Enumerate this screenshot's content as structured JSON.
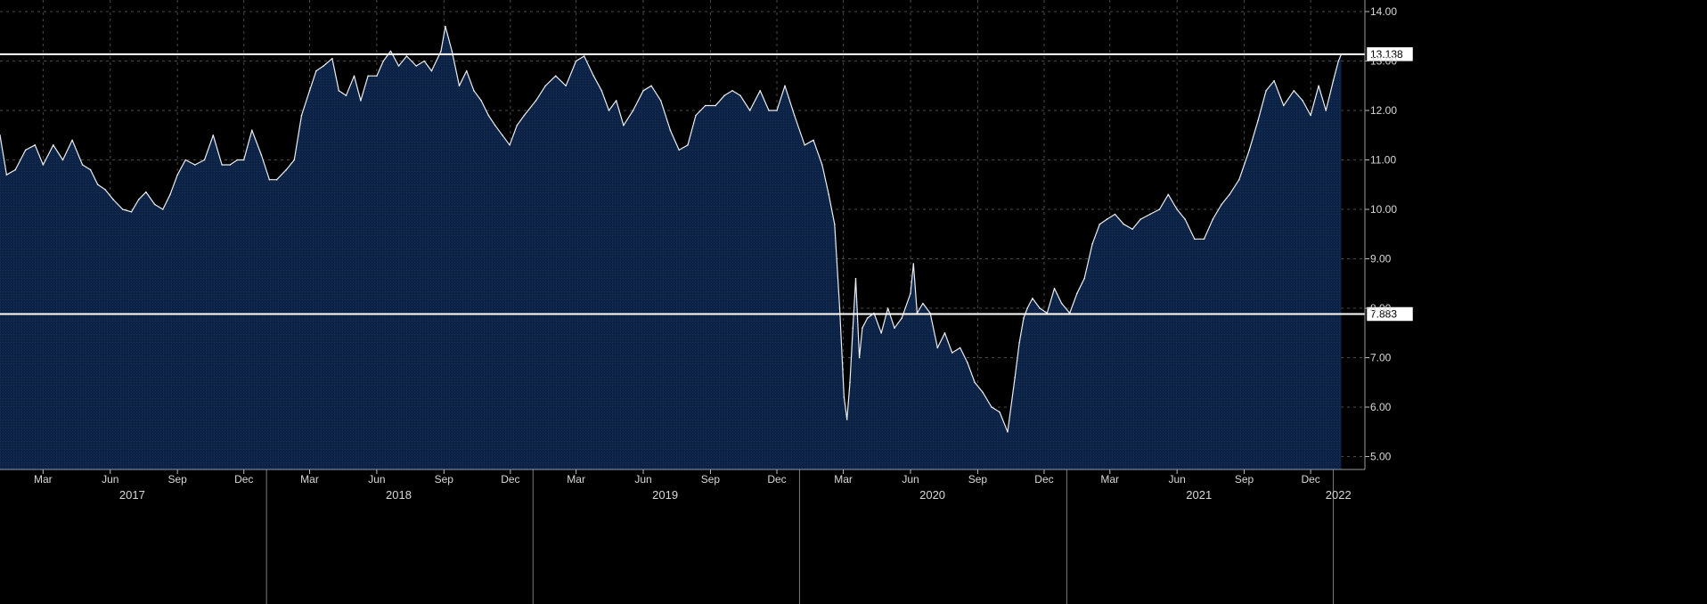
{
  "chart_data": {
    "type": "area",
    "title": "",
    "xlabel": "",
    "ylabel": "",
    "ylim": [
      4.8,
      14.2
    ],
    "xlim": [
      "2017-01-01",
      "2022-01-15"
    ],
    "y_ticks": [
      "5.00",
      "6.00",
      "7.00",
      "8.00",
      "9.00",
      "10.00",
      "11.00",
      "12.00",
      "13.00",
      "14.00"
    ],
    "x_month_ticks": [
      {
        "date": "2017-03-01",
        "label": "Mar"
      },
      {
        "date": "2017-06-01",
        "label": "Jun"
      },
      {
        "date": "2017-09-01",
        "label": "Sep"
      },
      {
        "date": "2017-12-01",
        "label": "Dec"
      },
      {
        "date": "2018-03-01",
        "label": "Mar"
      },
      {
        "date": "2018-06-01",
        "label": "Jun"
      },
      {
        "date": "2018-09-01",
        "label": "Sep"
      },
      {
        "date": "2018-12-01",
        "label": "Dec"
      },
      {
        "date": "2019-03-01",
        "label": "Mar"
      },
      {
        "date": "2019-06-01",
        "label": "Jun"
      },
      {
        "date": "2019-09-01",
        "label": "Sep"
      },
      {
        "date": "2019-12-01",
        "label": "Dec"
      },
      {
        "date": "2020-03-01",
        "label": "Mar"
      },
      {
        "date": "2020-06-01",
        "label": "Jun"
      },
      {
        "date": "2020-09-01",
        "label": "Sep"
      },
      {
        "date": "2020-12-01",
        "label": "Dec"
      },
      {
        "date": "2021-03-01",
        "label": "Mar"
      },
      {
        "date": "2021-06-01",
        "label": "Jun"
      },
      {
        "date": "2021-09-01",
        "label": "Sep"
      },
      {
        "date": "2021-12-01",
        "label": "Dec"
      }
    ],
    "year_labels": [
      {
        "date": "2017-07-01",
        "label": "2017"
      },
      {
        "date": "2018-07-01",
        "label": "2018"
      },
      {
        "date": "2019-07-01",
        "label": "2019"
      },
      {
        "date": "2020-07-01",
        "label": "2020"
      },
      {
        "date": "2021-07-01",
        "label": "2021"
      },
      {
        "date": "2022-01-08",
        "label": "2022"
      }
    ],
    "year_boundaries": [
      "2018-01-01",
      "2019-01-01",
      "2020-01-01",
      "2021-01-01",
      "2022-01-01"
    ],
    "reference_lines": [
      {
        "value": 13.138,
        "label": "13.138"
      },
      {
        "value": 7.883,
        "label": "7.883"
      }
    ],
    "grid": true,
    "series": [
      {
        "x": [
          "2017-01-01",
          "2017-01-10",
          "2017-01-22",
          "2017-02-05",
          "2017-02-18",
          "2017-03-01",
          "2017-03-15",
          "2017-03-28",
          "2017-04-10",
          "2017-04-24",
          "2017-05-05",
          "2017-05-15",
          "2017-05-25",
          "2017-06-05",
          "2017-06-18",
          "2017-06-30",
          "2017-07-10",
          "2017-07-20",
          "2017-08-01",
          "2017-08-12",
          "2017-08-22",
          "2017-09-01",
          "2017-09-12",
          "2017-09-25",
          "2017-10-08",
          "2017-10-20",
          "2017-11-01",
          "2017-11-12",
          "2017-11-22",
          "2017-12-01",
          "2017-12-12",
          "2017-12-25",
          "2018-01-05",
          "2018-01-15",
          "2018-01-28",
          "2018-02-08",
          "2018-02-18",
          "2018-03-01",
          "2018-03-10",
          "2018-03-20",
          "2018-04-01",
          "2018-04-10",
          "2018-04-20",
          "2018-05-01",
          "2018-05-10",
          "2018-05-20",
          "2018-06-01",
          "2018-06-10",
          "2018-06-20",
          "2018-07-01",
          "2018-07-12",
          "2018-07-25",
          "2018-08-05",
          "2018-08-15",
          "2018-08-28",
          "2018-09-03",
          "2018-09-12",
          "2018-09-22",
          "2018-10-02",
          "2018-10-12",
          "2018-10-22",
          "2018-11-01",
          "2018-11-10",
          "2018-11-20",
          "2018-11-30",
          "2018-12-10",
          "2018-12-20",
          "2019-01-05",
          "2019-01-18",
          "2019-02-01",
          "2019-02-15",
          "2019-03-01",
          "2019-03-12",
          "2019-03-25",
          "2019-04-05",
          "2019-04-15",
          "2019-04-25",
          "2019-05-05",
          "2019-05-18",
          "2019-06-01",
          "2019-06-12",
          "2019-06-25",
          "2019-07-08",
          "2019-07-20",
          "2019-08-01",
          "2019-08-12",
          "2019-08-25",
          "2019-09-08",
          "2019-09-20",
          "2019-10-01",
          "2019-10-12",
          "2019-10-25",
          "2019-11-08",
          "2019-11-20",
          "2019-12-01",
          "2019-12-12",
          "2019-12-25",
          "2020-01-08",
          "2020-01-20",
          "2020-02-01",
          "2020-02-10",
          "2020-02-18",
          "2020-02-25",
          "2020-03-02",
          "2020-03-06",
          "2020-03-10",
          "2020-03-14",
          "2020-03-18",
          "2020-03-23",
          "2020-03-27",
          "2020-04-03",
          "2020-04-12",
          "2020-04-22",
          "2020-05-01",
          "2020-05-10",
          "2020-05-20",
          "2020-06-01",
          "2020-06-05",
          "2020-06-10",
          "2020-06-18",
          "2020-06-28",
          "2020-07-08",
          "2020-07-18",
          "2020-07-28",
          "2020-08-08",
          "2020-08-18",
          "2020-08-28",
          "2020-09-08",
          "2020-09-20",
          "2020-10-01",
          "2020-10-12",
          "2020-10-22",
          "2020-10-28",
          "2020-11-03",
          "2020-11-08",
          "2020-11-15",
          "2020-11-25",
          "2020-12-05",
          "2020-12-15",
          "2020-12-25",
          "2021-01-05",
          "2021-01-15",
          "2021-01-25",
          "2021-02-05",
          "2021-02-15",
          "2021-02-25",
          "2021-03-08",
          "2021-03-20",
          "2021-04-01",
          "2021-04-12",
          "2021-04-25",
          "2021-05-08",
          "2021-05-20",
          "2021-06-01",
          "2021-06-12",
          "2021-06-25",
          "2021-07-08",
          "2021-07-20",
          "2021-08-01",
          "2021-08-12",
          "2021-08-25",
          "2021-09-08",
          "2021-09-20",
          "2021-10-01",
          "2021-10-12",
          "2021-10-25",
          "2021-11-08",
          "2021-11-20",
          "2021-12-01",
          "2021-12-12",
          "2021-12-22",
          "2022-01-01",
          "2022-01-08",
          "2022-01-12"
        ],
        "values": [
          11.5,
          10.7,
          10.8,
          11.2,
          11.3,
          10.9,
          11.3,
          11.0,
          11.4,
          10.9,
          10.8,
          10.5,
          10.4,
          10.2,
          10.0,
          9.95,
          10.2,
          10.35,
          10.1,
          10.0,
          10.3,
          10.7,
          11.0,
          10.9,
          11.0,
          11.5,
          10.9,
          10.9,
          11.0,
          11.0,
          11.6,
          11.1,
          10.6,
          10.6,
          10.8,
          11.0,
          11.9,
          12.4,
          12.8,
          12.9,
          13.05,
          12.4,
          12.3,
          12.7,
          12.2,
          12.7,
          12.7,
          13.0,
          13.2,
          12.9,
          13.1,
          12.9,
          13.0,
          12.8,
          13.2,
          13.7,
          13.2,
          12.5,
          12.8,
          12.4,
          12.2,
          11.9,
          11.7,
          11.5,
          11.3,
          11.7,
          11.9,
          12.2,
          12.5,
          12.7,
          12.5,
          13.0,
          13.1,
          12.7,
          12.4,
          12.0,
          12.2,
          11.7,
          12.0,
          12.4,
          12.5,
          12.2,
          11.6,
          11.2,
          11.3,
          11.9,
          12.1,
          12.1,
          12.3,
          12.4,
          12.3,
          12.0,
          12.4,
          12.0,
          12.0,
          12.5,
          11.9,
          11.3,
          11.4,
          10.9,
          10.3,
          9.7,
          8.0,
          6.2,
          5.75,
          6.5,
          7.6,
          8.6,
          7.0,
          7.6,
          7.8,
          7.9,
          7.5,
          8.0,
          7.6,
          7.8,
          8.3,
          8.9,
          7.9,
          8.1,
          7.9,
          7.2,
          7.5,
          7.1,
          7.2,
          6.9,
          6.5,
          6.3,
          6.0,
          5.9,
          5.5,
          6.6,
          7.3,
          7.8,
          8.0,
          8.2,
          8.0,
          7.9,
          8.4,
          8.1,
          7.9,
          8.3,
          8.6,
          9.3,
          9.7,
          9.8,
          9.9,
          9.7,
          9.6,
          9.8,
          9.9,
          10.0,
          10.3,
          10.0,
          9.8,
          9.4,
          9.4,
          9.8,
          10.1,
          10.3,
          10.6,
          11.2,
          11.8,
          12.4,
          12.6,
          12.1,
          12.4,
          12.2,
          11.9,
          12.5,
          12.0,
          12.6,
          13.0,
          13.138
        ]
      }
    ]
  },
  "colors": {
    "background": "#000000",
    "area_fill": "#0d2346",
    "line": "#e9eef5",
    "grid": "#4a4a4a",
    "reference_line": "#ffffff"
  }
}
